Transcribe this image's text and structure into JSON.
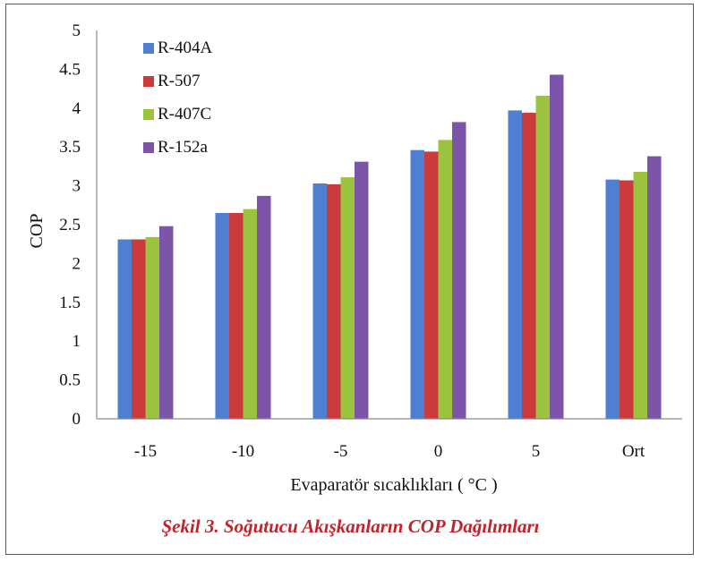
{
  "caption": "Şekil 3. Soğutucu Akışkanların COP Dağılımları",
  "colors": {
    "caption": "#c0232b",
    "axis": "#8c8c8c",
    "text": "#111111"
  },
  "chart_data": {
    "type": "bar",
    "title": "",
    "xlabel": "Evaparatör sıcaklıkları ( °C )",
    "ylabel": "COP",
    "ylim": [
      0,
      5
    ],
    "yticks": [
      "0",
      "0.5",
      "1",
      "1.5",
      "2",
      "2.5",
      "3",
      "3.5",
      "4",
      "4.5",
      "5"
    ],
    "grid": false,
    "legend_position": "top-left",
    "categories": [
      "-15",
      "-10",
      "-5",
      "0",
      "5",
      "Ort"
    ],
    "series": [
      {
        "name": "R-404A",
        "color": "#4f7fd0",
        "values": [
          2.31,
          2.65,
          3.03,
          3.46,
          3.97,
          3.08
        ]
      },
      {
        "name": "R-507",
        "color": "#cc3b3b",
        "values": [
          2.31,
          2.65,
          3.02,
          3.44,
          3.94,
          3.07
        ]
      },
      {
        "name": "R-407C",
        "color": "#9cc33f",
        "values": [
          2.34,
          2.7,
          3.11,
          3.59,
          4.16,
          3.18
        ]
      },
      {
        "name": "R-152a",
        "color": "#7c54a8",
        "values": [
          2.48,
          2.87,
          3.31,
          3.82,
          4.43,
          3.38
        ]
      }
    ]
  }
}
